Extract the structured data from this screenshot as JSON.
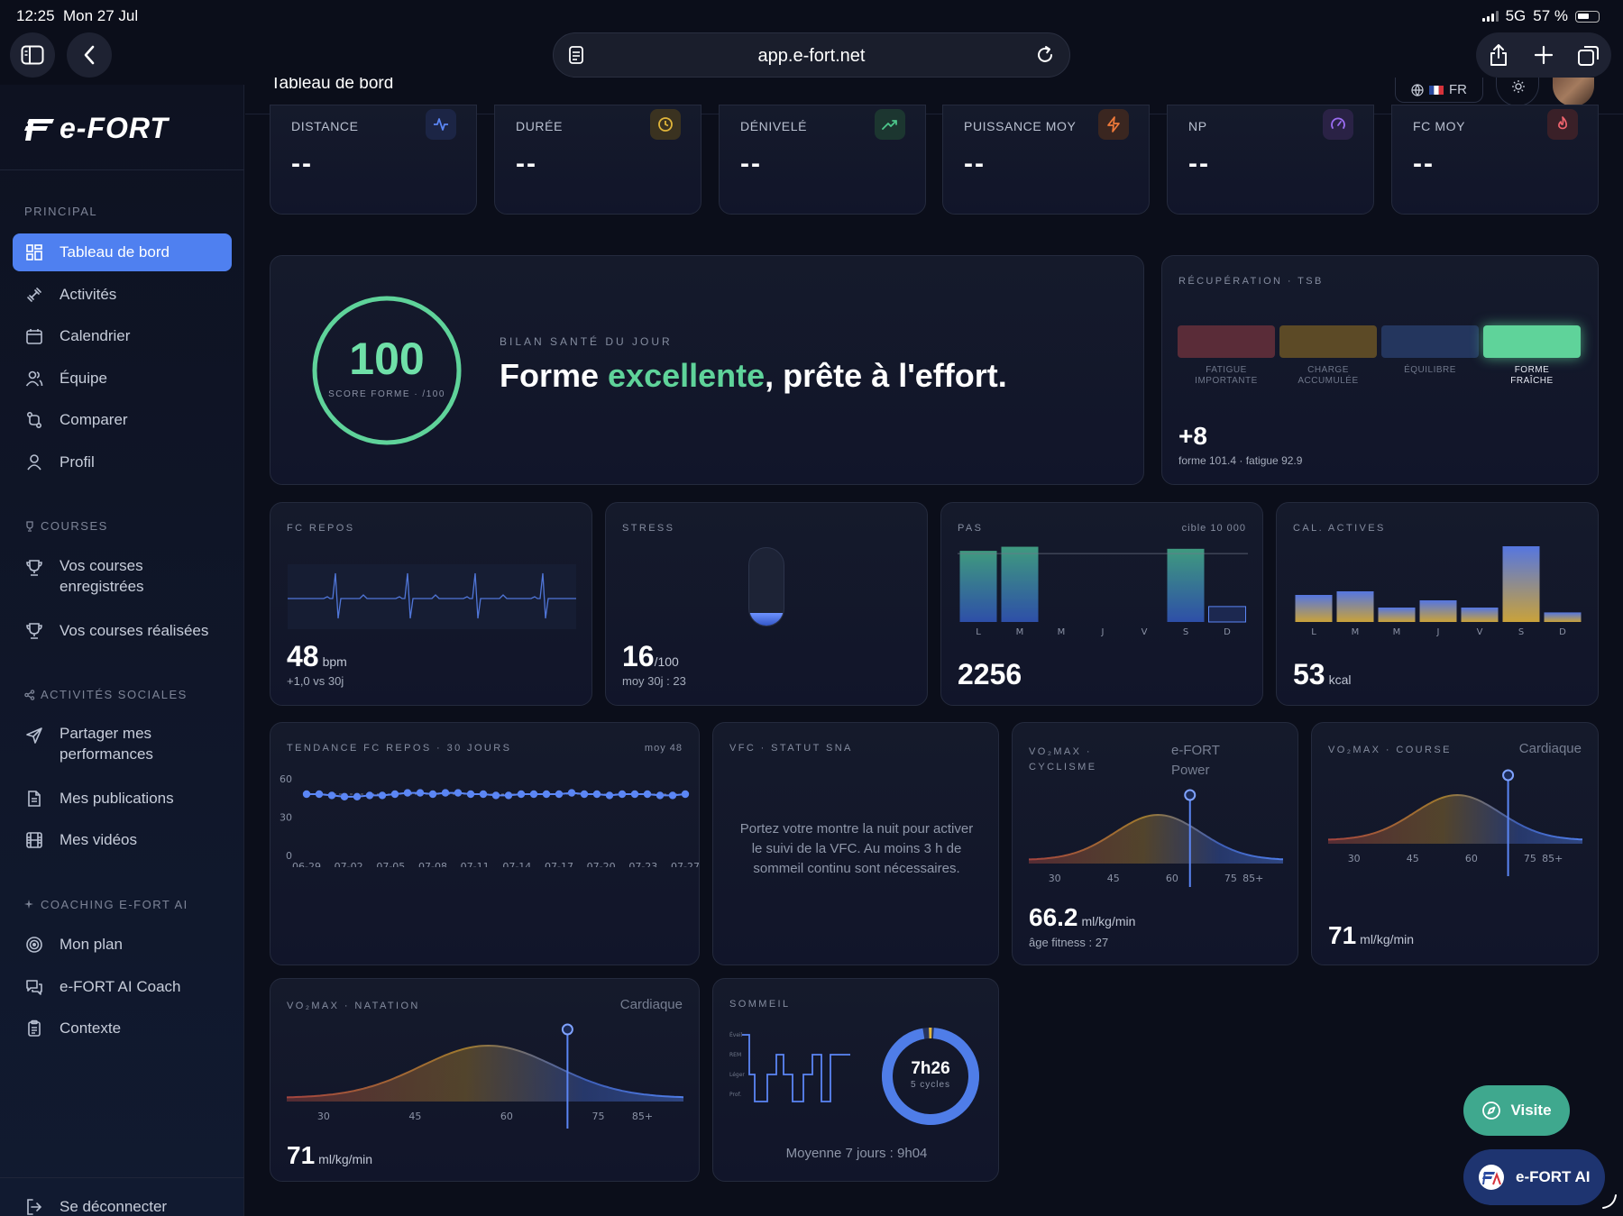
{
  "status_bar": {
    "time": "12:25",
    "date": "Mon 27 Jul",
    "network": "5G",
    "battery": "57 %"
  },
  "browser": {
    "url": "app.e-fort.net"
  },
  "sidebar": {
    "logo": "e-FORT",
    "sections": [
      {
        "title": "PRINCIPAL",
        "items": [
          {
            "label": "Tableau de bord",
            "icon": "dashboard-icon",
            "active": true
          },
          {
            "label": "Activités",
            "icon": "dumbbell-icon"
          },
          {
            "label": "Calendrier",
            "icon": "calendar-icon"
          },
          {
            "label": "Équipe",
            "icon": "team-icon"
          },
          {
            "label": "Comparer",
            "icon": "compare-icon"
          },
          {
            "label": "Profil",
            "icon": "user-icon"
          }
        ]
      },
      {
        "title": "COURSES",
        "icon": "trophy-icon",
        "items": [
          {
            "label": "Vos courses enregistrées",
            "icon": "trophy-icon"
          },
          {
            "label": "Vos courses réalisées",
            "icon": "trophy-icon"
          }
        ]
      },
      {
        "title": "ACTIVITÉS SOCIALES",
        "icon": "share-icon",
        "items": [
          {
            "label": "Partager mes performances",
            "icon": "send-icon"
          },
          {
            "label": "Mes publications",
            "icon": "document-icon"
          },
          {
            "label": "Mes vidéos",
            "icon": "film-icon"
          }
        ]
      },
      {
        "title": "COACHING E-FORT AI",
        "icon": "sparkle-icon",
        "items": [
          {
            "label": "Mon plan",
            "icon": "target-icon"
          },
          {
            "label": "e-FORT AI Coach",
            "icon": "chat-icon"
          },
          {
            "label": "Contexte",
            "icon": "clipboard-icon"
          }
        ]
      }
    ],
    "logout": "Se déconnecter"
  },
  "header": {
    "title": "Tableau de bord",
    "lang": "FR"
  },
  "stats": [
    {
      "label": "DISTANCE",
      "value": "--",
      "icon": "activity-icon",
      "color": "#5b86f5"
    },
    {
      "label": "DURÉE",
      "value": "--",
      "icon": "clock-icon",
      "color": "#e0b53a"
    },
    {
      "label": "DÉNIVELÉ",
      "value": "--",
      "icon": "trending-up-icon",
      "color": "#4cc58a"
    },
    {
      "label": "PUISSANCE MOY",
      "value": "--",
      "icon": "bolt-icon",
      "color": "#f07a3a"
    },
    {
      "label": "NP",
      "value": "--",
      "icon": "gauge-icon",
      "color": "#9a6cf0"
    },
    {
      "label": "FC MOY",
      "value": "--",
      "icon": "flame-icon",
      "color": "#f0646e"
    }
  ],
  "health": {
    "score": "100",
    "score_label": "SCORE FORME · /100",
    "subtitle": "BILAN SANTÉ DU JOUR",
    "headline_pre": "Forme ",
    "headline_accent": "excellente",
    "headline_post": ", prête à l'effort.",
    "accent_color": "#5fd39a"
  },
  "recovery": {
    "title": "RÉCUPÉRATION · TSB",
    "segments": [
      {
        "label1": "FATIGUE",
        "label2": "IMPORTANTE",
        "color": "#5a2c38"
      },
      {
        "label1": "CHARGE",
        "label2": "ACCUMULÉE",
        "color": "#5c4a26"
      },
      {
        "label1": "ÉQUILIBRE",
        "label2": "",
        "color": "#24365e"
      },
      {
        "label1": "FORME",
        "label2": "FRAÎCHE",
        "color": "#5fd39a",
        "active": true
      }
    ],
    "value": "+8",
    "detail": "forme 101.4 · fatigue 92.9"
  },
  "fc_repos": {
    "title": "FC REPOS",
    "value": "48",
    "unit": "bpm",
    "sub": "+1,0 vs 30j"
  },
  "stress": {
    "title": "STRESS",
    "value": "16",
    "unit": "/100",
    "sub": "moy 30j : 23",
    "level": 0.16
  },
  "pas": {
    "title": "PAS",
    "target_label": "cible 10 000",
    "value": "2256",
    "chart_data": {
      "type": "bar",
      "categories": [
        "L",
        "M",
        "M",
        "J",
        "V",
        "S",
        "D"
      ],
      "values": [
        10400,
        11000,
        0,
        0,
        0,
        10700,
        2256
      ],
      "target": 10000
    }
  },
  "cal": {
    "title": "CAL. ACTIVES",
    "value": "53",
    "unit": "kcal",
    "chart_data": {
      "type": "bar",
      "categories": [
        "L",
        "M",
        "M",
        "J",
        "V",
        "S",
        "D"
      ],
      "values": [
        150,
        170,
        80,
        120,
        80,
        420,
        53
      ]
    }
  },
  "trend": {
    "title": "TENDANCE FC REPOS · 30 JOURS",
    "avg": "moy 48",
    "chart_data": {
      "type": "line",
      "ylim": [
        0,
        60
      ],
      "yticks": [
        "60",
        "30",
        "0"
      ],
      "xticks": [
        "06-29",
        "07-02",
        "07-05",
        "07-08",
        "07-11",
        "07-14",
        "07-17",
        "07-20",
        "07-23",
        "07-27"
      ],
      "values": [
        48,
        48,
        47,
        46,
        46,
        47,
        47,
        48,
        49,
        49,
        48,
        49,
        49,
        48,
        48,
        47,
        47,
        48,
        48,
        48,
        48,
        49,
        48,
        48,
        47,
        48,
        48,
        48,
        47,
        47,
        48
      ]
    }
  },
  "vfc": {
    "title": "VFC · STATUT SNA",
    "message": "Portez votre montre la nuit pour activer le suivi de la VFC. Au moins 3 h de sommeil continu sont nécessaires."
  },
  "vo2_cycl": {
    "title1": "VO₂MAX ·",
    "title2": "CYCLISME",
    "source1": "e-FORT",
    "source2": "Power",
    "value": "66.2",
    "unit": "ml/kg/min",
    "sub": "âge fitness : 27",
    "chart_data": {
      "type": "area",
      "xticks": [
        "30",
        "45",
        "60",
        "75",
        "85+"
      ],
      "marker": 66.2
    }
  },
  "vo2_course": {
    "title": "VO₂MAX · COURSE",
    "source": "Cardiaque",
    "value": "71",
    "unit": "ml/kg/min",
    "chart_data": {
      "type": "area",
      "xticks": [
        "30",
        "45",
        "60",
        "75",
        "85+"
      ],
      "marker": 71
    }
  },
  "vo2_nat": {
    "title": "VO₂MAX · NATATION",
    "source": "Cardiaque",
    "value": "71",
    "unit": "ml/kg/min",
    "chart_data": {
      "type": "area",
      "xticks": [
        "30",
        "45",
        "60",
        "75",
        "85+"
      ],
      "marker": 71
    }
  },
  "sommeil": {
    "title": "SOMMEIL",
    "duration": "7h26",
    "cycles": "5 cycles",
    "avg": "Moyenne 7 jours : 9h04",
    "stages": [
      "Éveil",
      "REM",
      "Léger",
      "Prof."
    ]
  },
  "fabs": {
    "visite": "Visite",
    "ai": "e-FORT AI"
  }
}
